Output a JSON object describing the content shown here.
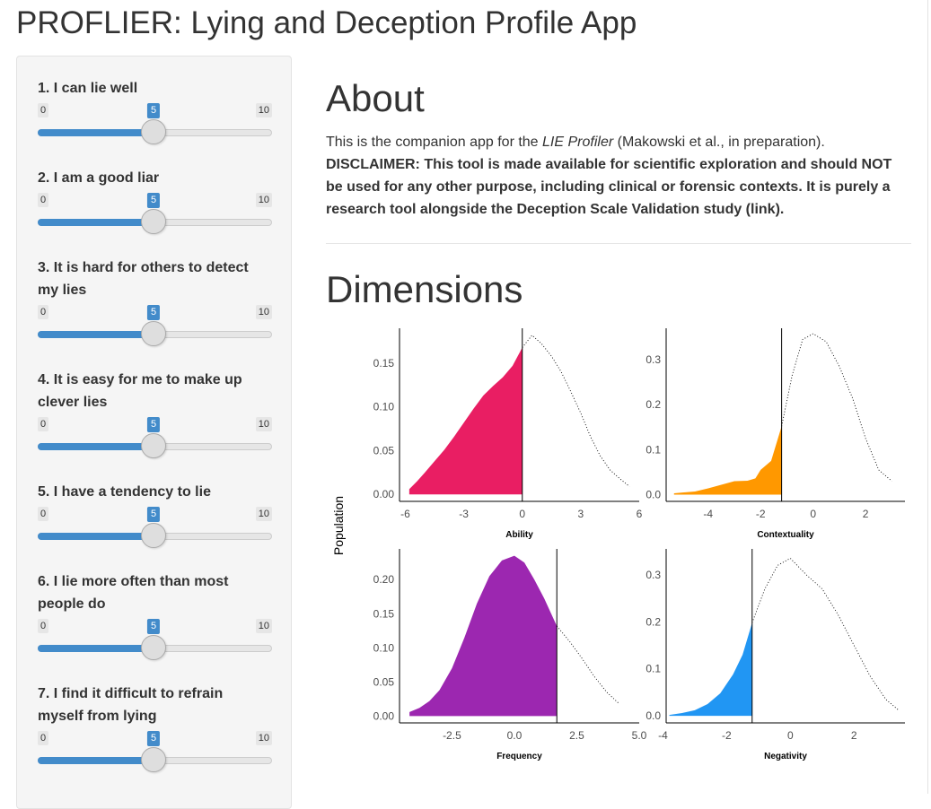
{
  "app": {
    "title": "PROFLIER: Lying and Deception Profile App"
  },
  "sidebar": {
    "sliders": [
      {
        "label": "1. I can lie well",
        "min": "0",
        "max": "10",
        "value": "5",
        "fraction": 0.5
      },
      {
        "label": "2. I am a good liar",
        "min": "0",
        "max": "10",
        "value": "5",
        "fraction": 0.5
      },
      {
        "label": "3. It is hard for others to detect my lies",
        "min": "0",
        "max": "10",
        "value": "5",
        "fraction": 0.5
      },
      {
        "label": "4. It is easy for me to make up clever lies",
        "min": "0",
        "max": "10",
        "value": "5",
        "fraction": 0.5
      },
      {
        "label": "5. I have a tendency to lie",
        "min": "0",
        "max": "10",
        "value": "5",
        "fraction": 0.5
      },
      {
        "label": "6. I lie more often than most people do",
        "min": "0",
        "max": "10",
        "value": "5",
        "fraction": 0.5
      },
      {
        "label": "7. I find it difficult to refrain myself from lying",
        "min": "0",
        "max": "10",
        "value": "5",
        "fraction": 0.5
      }
    ]
  },
  "main": {
    "about_heading": "About",
    "about_intro_1": "This is the companion app for the ",
    "about_intro_em": "LIE Profiler",
    "about_intro_2": " (Makowski et al., in preparation).",
    "disclaimer_lead": "DISCLAIMER:",
    "disclaimer_text": " This tool is made available for scientific exploration and should NOT be used for any other purpose, including clinical or forensic contexts. It is purely a research tool alongside the Deception Scale Validation study (link).",
    "dimensions_heading": "Dimensions"
  },
  "chart_data": {
    "type": "area",
    "ylabel": "Population",
    "panels": [
      {
        "name": "Ability",
        "color": "#e91e63",
        "xticks": [
          "-6",
          "-3",
          "0",
          "3",
          "6"
        ],
        "xlim": [
          -6.3,
          6
        ],
        "yticks": [
          "0.00",
          "0.05",
          "0.10",
          "0.15"
        ],
        "ylim": [
          -0.008,
          0.19
        ],
        "cutoff": 0,
        "x": [
          -5.8,
          -5.4,
          -5,
          -4.5,
          -4,
          -3.5,
          -3,
          -2.5,
          -2,
          -1.5,
          -1,
          -0.5,
          0,
          0.5,
          1,
          1.5,
          2,
          2.5,
          3,
          3.5,
          4,
          4.5,
          5,
          5.5
        ],
        "y": [
          0.006,
          0.015,
          0.025,
          0.038,
          0.051,
          0.066,
          0.082,
          0.098,
          0.113,
          0.124,
          0.134,
          0.147,
          0.168,
          0.182,
          0.172,
          0.158,
          0.14,
          0.117,
          0.093,
          0.066,
          0.044,
          0.028,
          0.018,
          0.009
        ]
      },
      {
        "name": "Contextuality",
        "color": "#ff9800",
        "xticks": [
          "-4",
          "-2",
          "0",
          "2"
        ],
        "xlim": [
          -5.6,
          3.5
        ],
        "yticks": [
          "0.0",
          "0.1",
          "0.2",
          "0.3"
        ],
        "ylim": [
          -0.015,
          0.37
        ],
        "cutoff": -1.2,
        "x": [
          -5.3,
          -4.5,
          -4,
          -3.5,
          -3,
          -2.5,
          -2.2,
          -2,
          -1.6,
          -1.2,
          -0.8,
          -0.4,
          0,
          0.5,
          1,
          1.5,
          2,
          2.5,
          3
        ],
        "y": [
          0.003,
          0.007,
          0.014,
          0.022,
          0.03,
          0.031,
          0.036,
          0.055,
          0.075,
          0.152,
          0.265,
          0.345,
          0.358,
          0.34,
          0.285,
          0.215,
          0.125,
          0.055,
          0.03
        ]
      },
      {
        "name": "Frequency",
        "color": "#9c27b0",
        "xticks": [
          "-2.5",
          "0.0",
          "2.5",
          "5.0"
        ],
        "xlim": [
          -4.6,
          5
        ],
        "yticks": [
          "0.00",
          "0.05",
          "0.10",
          "0.15",
          "0.20"
        ],
        "ylim": [
          -0.01,
          0.245
        ],
        "cutoff": 1.7,
        "x": [
          -4.2,
          -3.8,
          -3.4,
          -3,
          -2.5,
          -2,
          -1.5,
          -1,
          -0.5,
          0,
          0.4,
          0.8,
          1.2,
          1.7,
          2.2,
          2.7,
          3.2,
          3.7,
          4.2
        ],
        "y": [
          0.006,
          0.012,
          0.022,
          0.038,
          0.07,
          0.115,
          0.165,
          0.205,
          0.228,
          0.235,
          0.225,
          0.2,
          0.172,
          0.132,
          0.11,
          0.085,
          0.058,
          0.035,
          0.018
        ]
      },
      {
        "name": "Negativity",
        "color": "#2196f3",
        "xticks": [
          "-4",
          "-2",
          "0",
          "2"
        ],
        "xlim": [
          -3.9,
          3.6
        ],
        "yticks": [
          "0.0",
          "0.1",
          "0.2",
          "0.3"
        ],
        "ylim": [
          -0.015,
          0.355
        ],
        "cutoff": -1.2,
        "x": [
          -3.8,
          -3.4,
          -3,
          -2.6,
          -2.2,
          -1.8,
          -1.5,
          -1.2,
          -0.8,
          -0.4,
          0,
          0.5,
          1,
          1.5,
          2,
          2.5,
          3,
          3.4
        ],
        "y": [
          0.002,
          0.006,
          0.012,
          0.025,
          0.048,
          0.088,
          0.13,
          0.198,
          0.27,
          0.32,
          0.335,
          0.3,
          0.27,
          0.215,
          0.15,
          0.085,
          0.035,
          0.012
        ]
      }
    ]
  }
}
